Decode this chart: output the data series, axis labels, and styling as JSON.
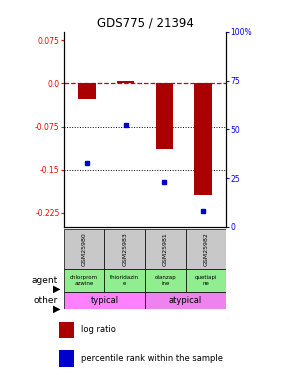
{
  "title": "GDS775 / 21394",
  "samples": [
    "GSM25980",
    "GSM25983",
    "GSM25981",
    "GSM25982"
  ],
  "log_ratios": [
    -0.027,
    0.005,
    -0.115,
    -0.195
  ],
  "percentile_ranks": [
    33,
    52,
    23,
    8
  ],
  "ylim_left": [
    -0.25,
    0.09
  ],
  "ylim_right": [
    0,
    100
  ],
  "yticks_left": [
    0.075,
    0.0,
    -0.075,
    -0.15,
    -0.225
  ],
  "yticks_right": [
    100,
    75,
    50,
    25,
    0
  ],
  "hlines": [
    -0.075,
    -0.15
  ],
  "agent_labels": [
    "chlorprom\nazwine",
    "thioridazin\ne",
    "olanzap\nine",
    "quetiapi\nne"
  ],
  "typical_color": "#FF80FF",
  "atypical_color": "#EE82EE",
  "agent_color": "#90EE90",
  "gsm_color": "#C8C8C8",
  "bar_color": "#AA0000",
  "dot_color": "#0000CC",
  "bar_width": 0.45,
  "zero_line_color": "#CC0000",
  "hline_color": "#000000"
}
